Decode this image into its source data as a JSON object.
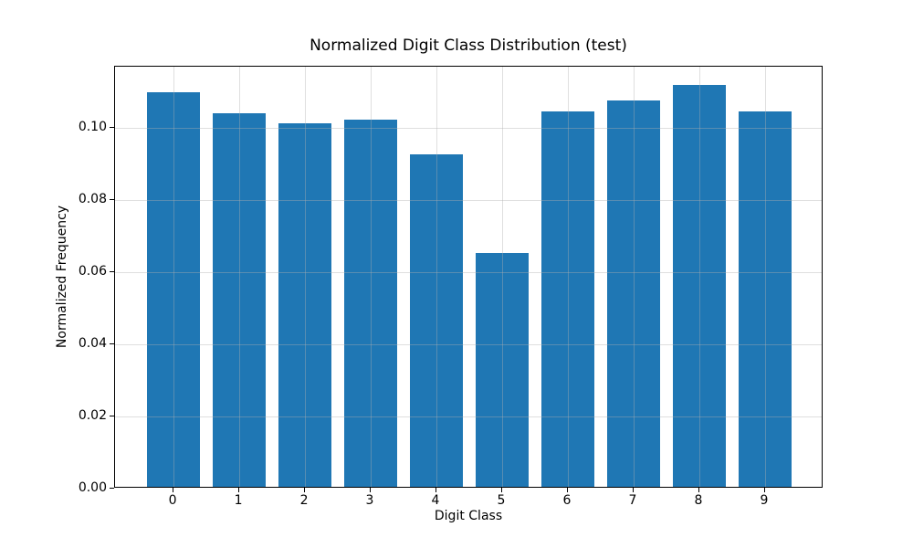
{
  "chart_data": {
    "type": "bar",
    "title": "Normalized Digit Class Distribution (test)",
    "xlabel": "Digit Class",
    "ylabel": "Normalized Frequency",
    "categories": [
      "0",
      "1",
      "2",
      "3",
      "4",
      "5",
      "6",
      "7",
      "8",
      "9"
    ],
    "values": [
      0.1094,
      0.1037,
      0.1008,
      0.1018,
      0.0923,
      0.0648,
      0.1042,
      0.1072,
      0.1115,
      0.104
    ],
    "yticks": [
      0.0,
      0.02,
      0.04,
      0.06,
      0.08,
      0.1
    ],
    "ytick_labels": [
      "0.00",
      "0.02",
      "0.04",
      "0.06",
      "0.08",
      "0.10"
    ],
    "ylim": [
      0,
      0.117
    ],
    "xlim": [
      -0.89,
      9.89
    ],
    "bar_width": 0.8,
    "bar_color": "#1f77b4",
    "grid": true,
    "grid_color": "rgba(176,176,176,0.4)",
    "legend_position": "none"
  }
}
